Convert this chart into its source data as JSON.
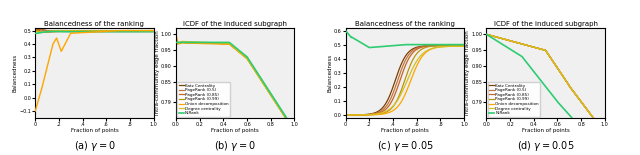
{
  "titles": [
    "Balancedness of the ranking",
    "ICDF of the induced subgraph",
    "Balancedness of the ranking",
    "ICDF of the induced subgraph"
  ],
  "xlabels": [
    "Fraction of points",
    "Fraction of points",
    "Fraction of points",
    "Fraction of points"
  ],
  "ylabels": [
    "Balancedness",
    "Intra-community edge fraction",
    "Balancedness",
    "Intra-community edge fraction"
  ],
  "captions": [
    "(a) $\\gamma = 0$",
    "(b) $\\gamma = 0$",
    "(c) $\\gamma = 0.05$",
    "(d) $\\gamma = 0.05$"
  ],
  "legend_labels": [
    "Katz Centrality",
    "PageRank (0.5)",
    "PageRank (0.85)",
    "PageRank (0.99)",
    "Onion decomposition",
    "Degree centrality",
    "N-Rank"
  ],
  "colors": [
    "#7B3F00",
    "#C07840",
    "#C86428",
    "#B8960C",
    "#FFA500",
    "#D4C020",
    "#2ECC71"
  ],
  "nrank_color": "#2ECC71",
  "bg_color": "#f0f0f0"
}
